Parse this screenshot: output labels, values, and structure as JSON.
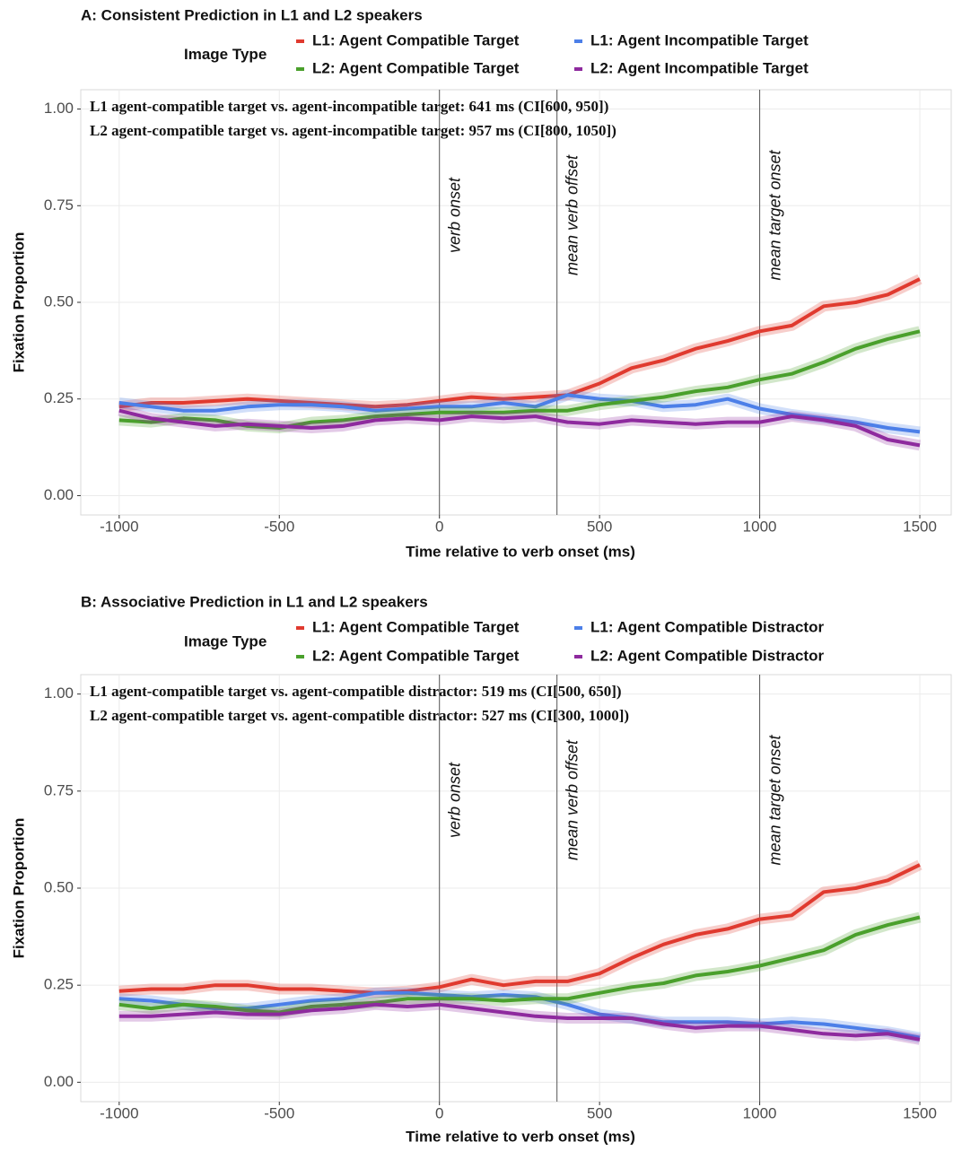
{
  "chart_data": [
    {
      "type": "line",
      "title": "A: Consistent Prediction in L1 and L2 speakers",
      "legend_title": "Image Type",
      "x_label": "Time relative to verb onset (ms)",
      "y_label": "Fixation Proportion",
      "annotations": [
        "L1 agent-compatible target vs. agent-incompatible target: 641 ms (CI[600, 950])",
        "L2 agent-compatible target vs. agent-incompatible target: 957 ms (CI[800, 1050])"
      ],
      "vlines": [
        {
          "x": 0,
          "label": "verb onset"
        },
        {
          "x": 367,
          "label": "mean verb offset"
        },
        {
          "x": 1000,
          "label": "mean target onset"
        }
      ],
      "xlim": [
        -1120,
        1598
      ],
      "ylim": [
        -0.05,
        1.05
      ],
      "xticks": [
        -1000,
        -500,
        0,
        500,
        1000,
        1500
      ],
      "yticks": [
        {
          "value": 0,
          "label": "0.00"
        },
        {
          "value": 0.25,
          "label": "0.25"
        },
        {
          "value": 0.5,
          "label": "0.50"
        },
        {
          "value": 0.75,
          "label": "0.75"
        },
        {
          "value": 1,
          "label": "1.00"
        }
      ],
      "grid": true,
      "x": [
        -1000,
        -900,
        -800,
        -700,
        -600,
        -500,
        -400,
        -300,
        -200,
        -100,
        0,
        100,
        200,
        300,
        400,
        500,
        600,
        700,
        800,
        900,
        1000,
        1100,
        1200,
        1300,
        1400,
        1500
      ],
      "series": [
        {
          "name": "L1: Agent Compatible Target",
          "color": "#e03a2f",
          "values": [
            0.23,
            0.24,
            0.24,
            0.245,
            0.25,
            0.245,
            0.24,
            0.235,
            0.23,
            0.235,
            0.245,
            0.255,
            0.25,
            0.255,
            0.26,
            0.29,
            0.33,
            0.35,
            0.38,
            0.4,
            0.425,
            0.44,
            0.49,
            0.5,
            0.52,
            0.56
          ]
        },
        {
          "name": "L1: Agent Incompatible Target",
          "color": "#4c7fe8",
          "values": [
            0.24,
            0.23,
            0.22,
            0.22,
            0.23,
            0.235,
            0.235,
            0.23,
            0.22,
            0.225,
            0.23,
            0.23,
            0.24,
            0.23,
            0.26,
            0.25,
            0.245,
            0.23,
            0.235,
            0.25,
            0.225,
            0.21,
            0.2,
            0.19,
            0.175,
            0.165
          ]
        },
        {
          "name": "L2: Agent Compatible Target",
          "color": "#4aa02c",
          "values": [
            0.195,
            0.19,
            0.2,
            0.195,
            0.18,
            0.175,
            0.19,
            0.195,
            0.205,
            0.21,
            0.215,
            0.215,
            0.215,
            0.22,
            0.22,
            0.235,
            0.245,
            0.255,
            0.27,
            0.28,
            0.3,
            0.315,
            0.345,
            0.38,
            0.405,
            0.425
          ]
        },
        {
          "name": "L2: Agent Incompatible Target",
          "color": "#8e2a9e",
          "values": [
            0.22,
            0.2,
            0.19,
            0.18,
            0.185,
            0.18,
            0.175,
            0.18,
            0.195,
            0.2,
            0.195,
            0.205,
            0.2,
            0.205,
            0.19,
            0.185,
            0.195,
            0.19,
            0.185,
            0.19,
            0.19,
            0.205,
            0.195,
            0.18,
            0.145,
            0.13
          ]
        }
      ]
    },
    {
      "type": "line",
      "title": "B: Associative Prediction in L1 and L2 speakers",
      "legend_title": "Image Type",
      "x_label": "Time relative to verb onset (ms)",
      "y_label": "Fixation Proportion",
      "annotations": [
        "L1 agent-compatible target vs. agent-compatible distractor: 519 ms (CI[500, 650])",
        "L2 agent-compatible target vs. agent-compatible distractor: 527 ms (CI[300, 1000])"
      ],
      "vlines": [
        {
          "x": 0,
          "label": "verb onset"
        },
        {
          "x": 367,
          "label": "mean verb offset"
        },
        {
          "x": 1000,
          "label": "mean target onset"
        }
      ],
      "xlim": [
        -1120,
        1598
      ],
      "ylim": [
        -0.05,
        1.05
      ],
      "xticks": [
        -1000,
        -500,
        0,
        500,
        1000,
        1500
      ],
      "yticks": [
        {
          "value": 0,
          "label": "0.00"
        },
        {
          "value": 0.25,
          "label": "0.25"
        },
        {
          "value": 0.5,
          "label": "0.50"
        },
        {
          "value": 0.75,
          "label": "0.75"
        },
        {
          "value": 1,
          "label": "1.00"
        }
      ],
      "grid": true,
      "x": [
        -1000,
        -900,
        -800,
        -700,
        -600,
        -500,
        -400,
        -300,
        -200,
        -100,
        0,
        100,
        200,
        300,
        400,
        500,
        600,
        700,
        800,
        900,
        1000,
        1100,
        1200,
        1300,
        1400,
        1500
      ],
      "series": [
        {
          "name": "L1: Agent Compatible Target",
          "color": "#e03a2f",
          "values": [
            0.235,
            0.24,
            0.24,
            0.25,
            0.25,
            0.24,
            0.24,
            0.235,
            0.23,
            0.235,
            0.245,
            0.265,
            0.25,
            0.26,
            0.26,
            0.28,
            0.32,
            0.355,
            0.38,
            0.395,
            0.42,
            0.43,
            0.49,
            0.5,
            0.52,
            0.56
          ]
        },
        {
          "name": "L1: Agent Compatible Distractor",
          "color": "#4c7fe8",
          "values": [
            0.215,
            0.21,
            0.2,
            0.19,
            0.19,
            0.2,
            0.21,
            0.215,
            0.23,
            0.23,
            0.225,
            0.22,
            0.225,
            0.22,
            0.2,
            0.175,
            0.165,
            0.155,
            0.155,
            0.155,
            0.15,
            0.155,
            0.15,
            0.14,
            0.13,
            0.115
          ]
        },
        {
          "name": "L2: Agent Compatible Target",
          "color": "#4aa02c",
          "values": [
            0.2,
            0.19,
            0.2,
            0.195,
            0.185,
            0.18,
            0.195,
            0.2,
            0.205,
            0.215,
            0.215,
            0.215,
            0.21,
            0.215,
            0.215,
            0.23,
            0.245,
            0.255,
            0.275,
            0.285,
            0.3,
            0.32,
            0.34,
            0.38,
            0.405,
            0.425
          ]
        },
        {
          "name": "L2: Agent Compatible Distractor",
          "color": "#8e2a9e",
          "values": [
            0.17,
            0.17,
            0.175,
            0.18,
            0.175,
            0.175,
            0.185,
            0.19,
            0.2,
            0.195,
            0.2,
            0.19,
            0.18,
            0.17,
            0.165,
            0.165,
            0.165,
            0.15,
            0.14,
            0.145,
            0.145,
            0.135,
            0.125,
            0.12,
            0.125,
            0.11
          ]
        }
      ]
    }
  ]
}
